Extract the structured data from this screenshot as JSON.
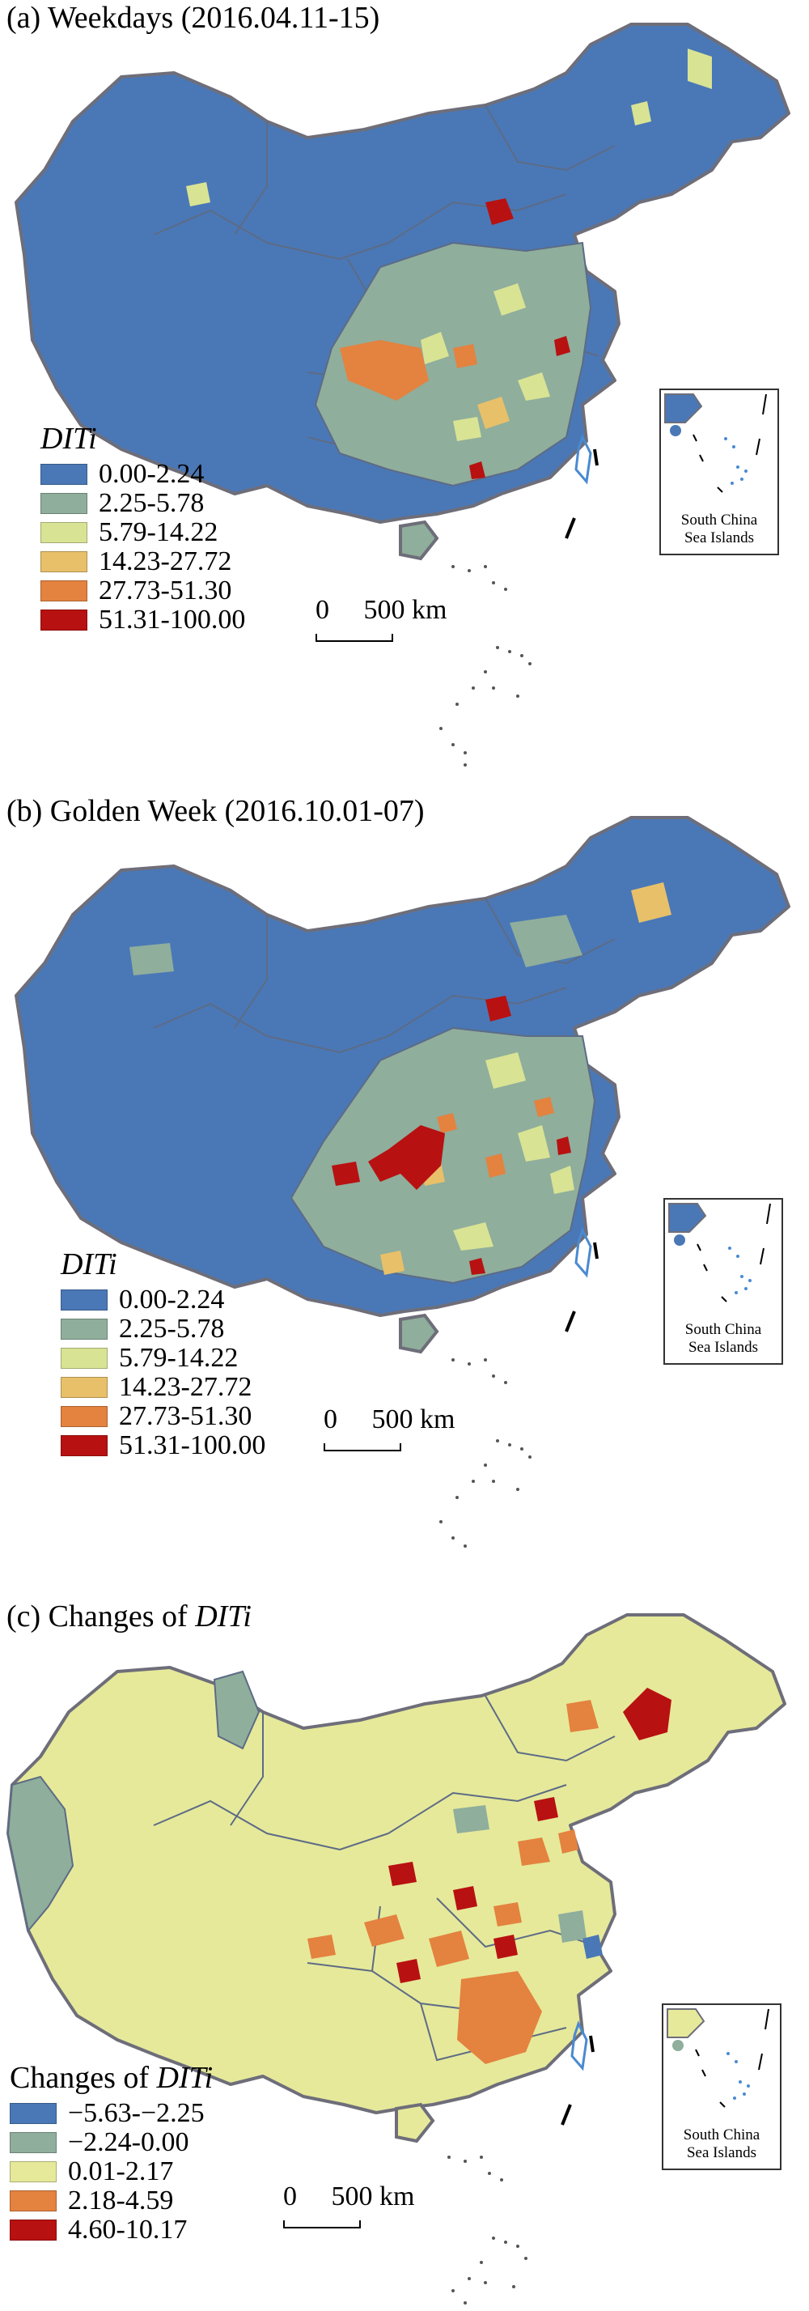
{
  "panels": [
    {
      "title_prefix": "(a) Weekdays (2016.04.11-15)",
      "title_italic": "",
      "legend_title": "DITi",
      "legend_title_plain": "",
      "legend_items": [
        {
          "label": "0.00-2.24",
          "color": "#4a78b6"
        },
        {
          "label": "2.25-5.78",
          "color": "#8fae9c"
        },
        {
          "label": "5.79-14.22",
          "color": "#d9e394"
        },
        {
          "label": "14.23-27.72",
          "color": "#e8c06a"
        },
        {
          "label": "27.73-51.30",
          "color": "#e4823f"
        },
        {
          "label": "51.31-100.00",
          "color": "#b81111"
        }
      ],
      "base_color": "#4a78b6",
      "scale_label": "0     500 km",
      "inset_label": [
        "South China",
        "Sea Islands"
      ]
    },
    {
      "title_prefix": "(b) Golden Week (2016.10.01-07)",
      "title_italic": "",
      "legend_title": "DITi",
      "legend_title_plain": "",
      "legend_items": [
        {
          "label": "0.00-2.24",
          "color": "#4a78b6"
        },
        {
          "label": "2.25-5.78",
          "color": "#8fae9c"
        },
        {
          "label": "5.79-14.22",
          "color": "#d9e394"
        },
        {
          "label": "14.23-27.72",
          "color": "#e8c06a"
        },
        {
          "label": "27.73-51.30",
          "color": "#e4823f"
        },
        {
          "label": "51.31-100.00",
          "color": "#b81111"
        }
      ],
      "base_color": "#4a78b6",
      "scale_label": "0     500 km",
      "inset_label": [
        "South China",
        "Sea Islands"
      ]
    },
    {
      "title_prefix": "(c) Changes of ",
      "title_italic": "DITi",
      "legend_title": "DITi",
      "legend_title_plain": "Changes of ",
      "legend_items": [
        {
          "label": "−5.63-−2.25",
          "color": "#4a78b6"
        },
        {
          "label": "−2.24-0.00",
          "color": "#8fae9c"
        },
        {
          "label": "0.01-2.17",
          "color": "#e6e99a"
        },
        {
          "label": "2.18-4.59",
          "color": "#e4823f"
        },
        {
          "label": "4.60-10.17",
          "color": "#b81111"
        }
      ],
      "base_color": "#e6e99a",
      "scale_label": "0     500 km",
      "inset_label": [
        "South China",
        "Sea Islands"
      ]
    }
  ]
}
